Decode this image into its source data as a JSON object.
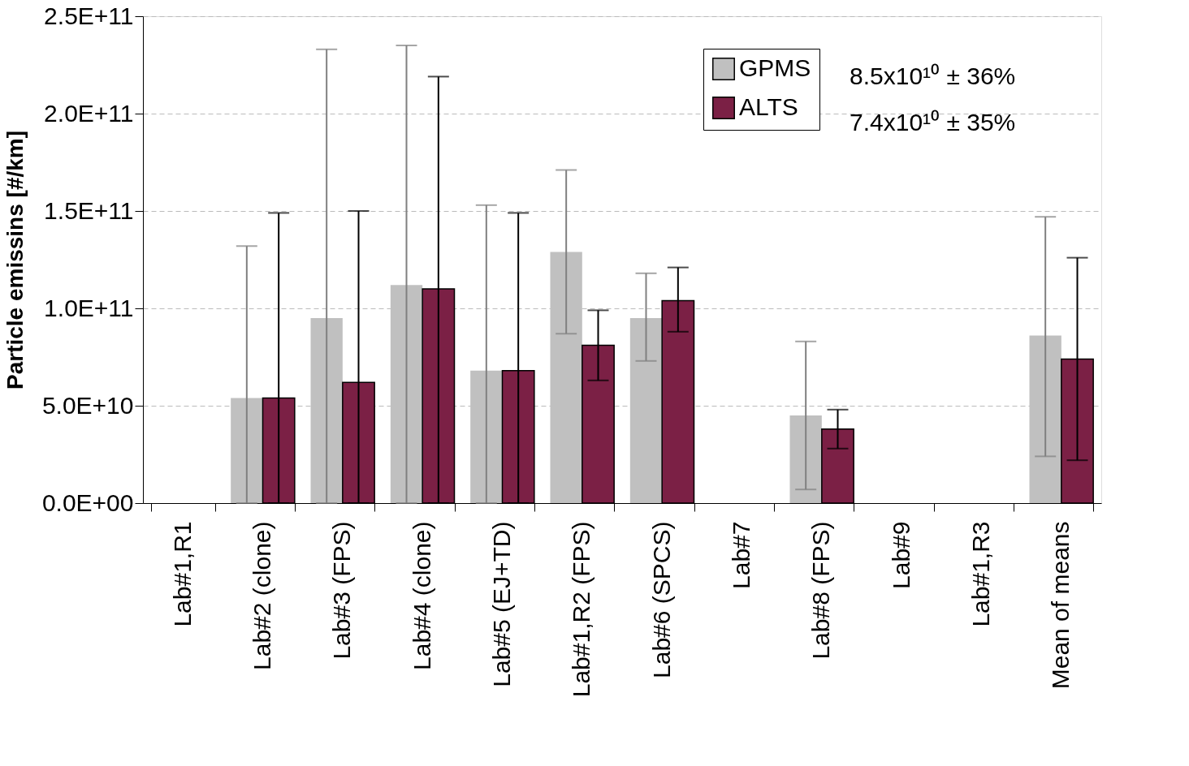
{
  "chart_data": {
    "type": "bar",
    "ylabel": "Particle emissins [#/km]",
    "categories": [
      "Lab#1,R1",
      "Lab#2 (clone)",
      "Lab#3 (FPS)",
      "Lab#4 (clone)",
      "Lab#5 (EJ+TD)",
      "Lab#1,R2 (FPS)",
      "Lab#6 (SPCS)",
      "Lab#7",
      "Lab#8 (FPS)",
      "Lab#9",
      "Lab#1,R3",
      "Mean of means"
    ],
    "series": [
      {
        "name": "GPMS",
        "color": "#c0c0c0",
        "values": [
          null,
          54000000000,
          95000000000,
          112000000000,
          68000000000,
          129000000000,
          95000000000,
          null,
          45000000000,
          null,
          null,
          86000000000
        ],
        "errors": [
          null,
          [
            0,
            132000000000
          ],
          [
            0,
            233000000000
          ],
          [
            0,
            235000000000
          ],
          [
            0,
            153000000000
          ],
          [
            87000000000,
            171000000000
          ],
          [
            73000000000,
            118000000000
          ],
          null,
          [
            7000000000,
            83000000000
          ],
          null,
          null,
          [
            24000000000,
            147000000000
          ]
        ]
      },
      {
        "name": "ALTS",
        "color": "#7b2045",
        "values": [
          null,
          54000000000,
          62000000000,
          110000000000,
          68000000000,
          81000000000,
          104000000000,
          null,
          38000000000,
          null,
          null,
          74000000000
        ],
        "errors": [
          null,
          [
            0,
            149000000000
          ],
          [
            0,
            150000000000
          ],
          [
            0,
            219000000000
          ],
          [
            0,
            149000000000
          ],
          [
            63000000000,
            99000000000
          ],
          [
            88000000000,
            121000000000
          ],
          null,
          [
            28000000000,
            48000000000
          ],
          null,
          null,
          [
            22000000000,
            126000000000
          ]
        ]
      }
    ],
    "ylim": [
      0,
      250000000000
    ],
    "yticks": [
      {
        "value": 0,
        "label": "0.0E+00"
      },
      {
        "value": 50000000000,
        "label": "5.0E+10"
      },
      {
        "value": 100000000000,
        "label": "1.0E+11"
      },
      {
        "value": 150000000000,
        "label": "1.5E+11"
      },
      {
        "value": 200000000000,
        "label": "2.0E+11"
      },
      {
        "value": 250000000000,
        "label": "2.5E+11"
      }
    ],
    "grid": "y",
    "legend": "top right",
    "annotations": [
      "8.5x10¹⁰ ± 36%",
      "7.4x10¹⁰ ± 35%"
    ]
  }
}
